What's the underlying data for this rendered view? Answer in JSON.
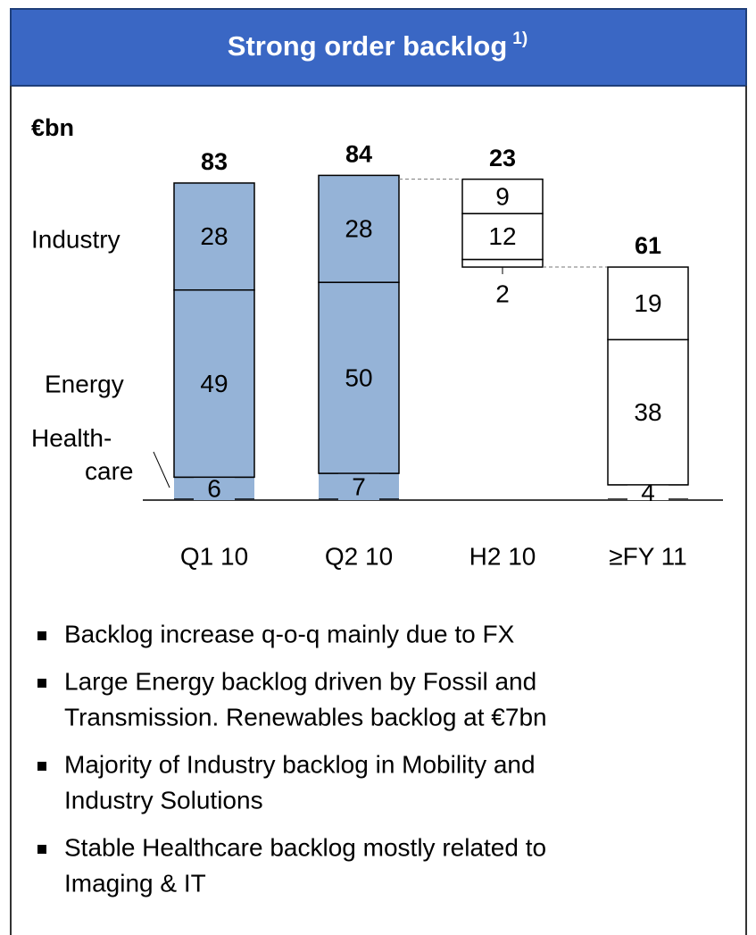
{
  "title": "Strong order backlog",
  "title_note": "1)",
  "chart_data": {
    "type": "stacked_bar",
    "unit": "€bn",
    "categories": [
      "Q1 10",
      "Q2 10",
      "H2 10",
      "≥FY 11"
    ],
    "totals": [
      83,
      84,
      23,
      61
    ],
    "series": [
      {
        "name": "Health-care",
        "values": [
          6,
          7,
          2,
          4
        ]
      },
      {
        "name": "Energy",
        "values": [
          49,
          50,
          12,
          38
        ]
      },
      {
        "name": "Industry",
        "values": [
          28,
          28,
          9,
          19
        ]
      }
    ],
    "bar_colors": [
      "#95b3d7",
      "#95b3d7",
      "#ffffff",
      "#ffffff"
    ],
    "floating": [
      false,
      false,
      true,
      false
    ],
    "ylim": [
      0,
      90
    ]
  },
  "bullets": [
    [
      "Backlog increase q-o-q mainly due to FX"
    ],
    [
      "Large Energy backlog driven by Fossil and",
      "Transmission. Renewables backlog at €7bn"
    ],
    [
      "Majority of Industry backlog in Mobility and",
      "Industry Solutions"
    ],
    [
      "Stable Healthcare backlog mostly related to",
      "Imaging & IT"
    ]
  ]
}
